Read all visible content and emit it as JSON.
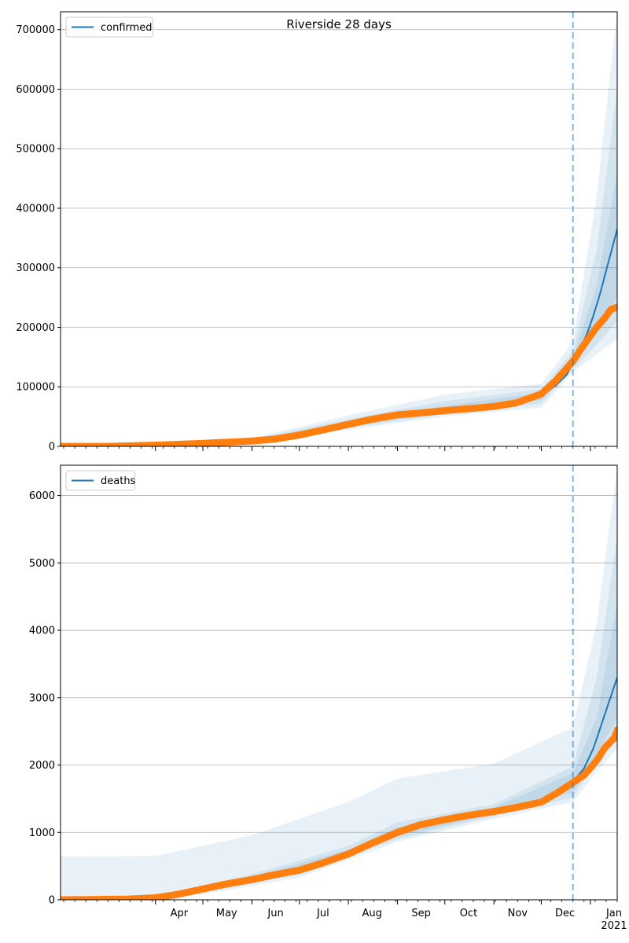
{
  "chart_data": [
    {
      "type": "line",
      "title": "Riverside 28 days",
      "xlabel": "",
      "ylabel": "",
      "x_range": [
        "2020-02-01",
        "2021-01-18"
      ],
      "forecast_start": "2020-12-21",
      "ylim": [
        0,
        730000
      ],
      "yticks": [
        0,
        100000,
        200000,
        300000,
        400000,
        500000,
        600000,
        700000
      ],
      "ytick_labels": [
        "0",
        "100000",
        "200000",
        "300000",
        "400000",
        "500000",
        "600000",
        "700000"
      ],
      "grid": "horizontal",
      "legend": {
        "position": "top-left",
        "entries": [
          "confirmed"
        ]
      },
      "series": [
        {
          "name": "confirmed",
          "kind": "model-median-line",
          "color": "#1f77b4",
          "points": [
            [
              "2020-02-01",
              0
            ],
            [
              "2020-03-01",
              300
            ],
            [
              "2020-04-01",
              2000
            ],
            [
              "2020-05-01",
              5000
            ],
            [
              "2020-06-01",
              9000
            ],
            [
              "2020-06-15",
              12000
            ],
            [
              "2020-07-01",
              19000
            ],
            [
              "2020-07-15",
              27000
            ],
            [
              "2020-08-01",
              37000
            ],
            [
              "2020-08-15",
              45000
            ],
            [
              "2020-09-01",
              53000
            ],
            [
              "2020-09-15",
              56000
            ],
            [
              "2020-10-01",
              60000
            ],
            [
              "2020-10-15",
              63000
            ],
            [
              "2020-11-01",
              67000
            ],
            [
              "2020-11-15",
              73000
            ],
            [
              "2020-12-01",
              85000
            ],
            [
              "2020-12-10",
              102000
            ],
            [
              "2020-12-17",
              120000
            ],
            [
              "2020-12-21",
              140000
            ],
            [
              "2020-12-25",
              160000
            ],
            [
              "2020-12-30",
              190000
            ],
            [
              "2021-01-03",
              220000
            ],
            [
              "2021-01-07",
              255000
            ],
            [
              "2021-01-11",
              295000
            ],
            [
              "2021-01-15",
              335000
            ],
            [
              "2021-01-18",
              365000
            ]
          ]
        },
        {
          "name": "",
          "kind": "observed-points",
          "color": "#ff7f0e",
          "points": [
            [
              "2020-02-01",
              0
            ],
            [
              "2020-03-01",
              0
            ],
            [
              "2020-04-01",
              2000
            ],
            [
              "2020-05-01",
              5000
            ],
            [
              "2020-06-01",
              9000
            ],
            [
              "2020-06-15",
              12000
            ],
            [
              "2020-07-01",
              19000
            ],
            [
              "2020-07-15",
              27000
            ],
            [
              "2020-08-01",
              37000
            ],
            [
              "2020-08-15",
              45000
            ],
            [
              "2020-09-01",
              53000
            ],
            [
              "2020-09-15",
              56000
            ],
            [
              "2020-10-01",
              60000
            ],
            [
              "2020-10-15",
              63000
            ],
            [
              "2020-11-01",
              67000
            ],
            [
              "2020-11-15",
              73000
            ],
            [
              "2020-12-01",
              88000
            ],
            [
              "2020-12-10",
              110000
            ],
            [
              "2020-12-16",
              128000
            ],
            [
              "2020-12-21",
              143000
            ],
            [
              "2020-12-26",
              163000
            ],
            [
              "2020-12-31",
              182000
            ],
            [
              "2021-01-05",
              200000
            ],
            [
              "2021-01-10",
              215000
            ],
            [
              "2021-01-14",
              230000
            ],
            [
              "2021-01-18",
              234000
            ]
          ]
        }
      ],
      "bands": [
        {
          "opacity": 0.1,
          "lower": [
            [
              "2020-02-01",
              0
            ],
            [
              "2020-06-01",
              6000
            ],
            [
              "2020-08-01",
              28000
            ],
            [
              "2020-10-01",
              50000
            ],
            [
              "2020-12-01",
              65000
            ],
            [
              "2020-12-21",
              125000
            ],
            [
              "2021-01-05",
              155000
            ],
            [
              "2021-01-18",
              180000
            ]
          ],
          "upper": [
            [
              "2020-02-01",
              2000
            ],
            [
              "2020-06-01",
              14000
            ],
            [
              "2020-08-01",
              52000
            ],
            [
              "2020-10-01",
              87000
            ],
            [
              "2020-12-01",
              105000
            ],
            [
              "2020-12-21",
              175000
            ],
            [
              "2021-01-05",
              420000
            ],
            [
              "2021-01-18",
              730000
            ]
          ]
        },
        {
          "opacity": 0.1,
          "lower": [
            [
              "2020-02-01",
              0
            ],
            [
              "2020-06-01",
              7000
            ],
            [
              "2020-08-01",
              31000
            ],
            [
              "2020-10-01",
              54000
            ],
            [
              "2020-12-01",
              72000
            ],
            [
              "2020-12-21",
              130000
            ],
            [
              "2021-01-05",
              170000
            ],
            [
              "2021-01-18",
              210000
            ]
          ],
          "upper": [
            [
              "2020-02-01",
              1500
            ],
            [
              "2020-06-01",
              12000
            ],
            [
              "2020-08-01",
              46000
            ],
            [
              "2020-10-01",
              76000
            ],
            [
              "2020-12-01",
              96000
            ],
            [
              "2020-12-21",
              160000
            ],
            [
              "2021-01-05",
              330000
            ],
            [
              "2021-01-18",
              600000
            ]
          ]
        },
        {
          "opacity": 0.1,
          "lower": [
            [
              "2020-02-01",
              0
            ],
            [
              "2020-06-01",
              8000
            ],
            [
              "2020-08-01",
              34000
            ],
            [
              "2020-10-01",
              57000
            ],
            [
              "2020-12-01",
              78000
            ],
            [
              "2020-12-21",
              135000
            ],
            [
              "2021-01-05",
              195000
            ],
            [
              "2021-01-18",
              250000
            ]
          ],
          "upper": [
            [
              "2020-02-01",
              800
            ],
            [
              "2020-06-01",
              10500
            ],
            [
              "2020-08-01",
              41000
            ],
            [
              "2020-10-01",
              68000
            ],
            [
              "2020-12-01",
              90000
            ],
            [
              "2020-12-21",
              150000
            ],
            [
              "2021-01-05",
              270000
            ],
            [
              "2021-01-18",
              460000
            ]
          ]
        }
      ]
    },
    {
      "type": "line",
      "title": "",
      "xlabel": "",
      "ylabel": "",
      "x_range": [
        "2020-02-01",
        "2021-01-18"
      ],
      "forecast_start": "2020-12-21",
      "ylim": [
        0,
        6450
      ],
      "yticks": [
        0,
        1000,
        2000,
        3000,
        4000,
        5000,
        6000
      ],
      "ytick_labels": [
        "0",
        "1000",
        "2000",
        "3000",
        "4000",
        "5000",
        "6000"
      ],
      "xticks": [
        "2020-04-01",
        "2020-05-01",
        "2020-06-01",
        "2020-07-01",
        "2020-08-01",
        "2020-09-01",
        "2020-10-01",
        "2020-11-01",
        "2020-12-01",
        "2021-01-01"
      ],
      "xtick_labels": [
        "Apr",
        "May",
        "Jun",
        "Jul",
        "Aug",
        "Sep",
        "Oct",
        "Nov",
        "Dec",
        "Jan"
      ],
      "xtick_year_label": "2021",
      "grid": "horizontal",
      "legend": {
        "position": "top-left",
        "entries": [
          "deaths"
        ]
      },
      "series": [
        {
          "name": "deaths",
          "kind": "model-median-line",
          "color": "#1f77b4",
          "points": [
            [
              "2020-02-01",
              0
            ],
            [
              "2020-03-15",
              10
            ],
            [
              "2020-04-01",
              30
            ],
            [
              "2020-04-15",
              80
            ],
            [
              "2020-05-01",
              160
            ],
            [
              "2020-05-15",
              230
            ],
            [
              "2020-06-01",
              300
            ],
            [
              "2020-06-15",
              370
            ],
            [
              "2020-07-01",
              440
            ],
            [
              "2020-07-15",
              540
            ],
            [
              "2020-08-01",
              680
            ],
            [
              "2020-08-15",
              830
            ],
            [
              "2020-09-01",
              1000
            ],
            [
              "2020-09-15",
              1110
            ],
            [
              "2020-10-01",
              1190
            ],
            [
              "2020-10-15",
              1250
            ],
            [
              "2020-11-01",
              1310
            ],
            [
              "2020-11-15",
              1370
            ],
            [
              "2020-12-01",
              1470
            ],
            [
              "2020-12-10",
              1570
            ],
            [
              "2020-12-21",
              1750
            ],
            [
              "2020-12-28",
              1950
            ],
            [
              "2021-01-03",
              2250
            ],
            [
              "2021-01-08",
              2600
            ],
            [
              "2021-01-13",
              2950
            ],
            [
              "2021-01-18",
              3300
            ]
          ]
        },
        {
          "name": "",
          "kind": "observed-points",
          "color": "#ff7f0e",
          "points": [
            [
              "2020-02-01",
              0
            ],
            [
              "2020-03-15",
              10
            ],
            [
              "2020-04-01",
              30
            ],
            [
              "2020-04-15",
              80
            ],
            [
              "2020-05-01",
              160
            ],
            [
              "2020-05-15",
              230
            ],
            [
              "2020-06-01",
              300
            ],
            [
              "2020-06-15",
              370
            ],
            [
              "2020-07-01",
              440
            ],
            [
              "2020-07-15",
              540
            ],
            [
              "2020-08-01",
              680
            ],
            [
              "2020-08-15",
              830
            ],
            [
              "2020-09-01",
              1000
            ],
            [
              "2020-09-15",
              1110
            ],
            [
              "2020-10-01",
              1190
            ],
            [
              "2020-10-15",
              1250
            ],
            [
              "2020-11-01",
              1310
            ],
            [
              "2020-11-15",
              1370
            ],
            [
              "2020-12-01",
              1450
            ],
            [
              "2020-12-12",
              1600
            ],
            [
              "2020-12-21",
              1740
            ],
            [
              "2020-12-28",
              1850
            ],
            [
              "2021-01-02",
              1980
            ],
            [
              "2021-01-06",
              2100
            ],
            [
              "2021-01-10",
              2250
            ],
            [
              "2021-01-14",
              2350
            ],
            [
              "2021-01-16",
              2400
            ],
            [
              "2021-01-18",
              2520
            ]
          ]
        }
      ],
      "bands": [
        {
          "opacity": 0.1,
          "lower": [
            [
              "2020-02-01",
              0
            ],
            [
              "2020-05-01",
              80
            ],
            [
              "2020-07-01",
              330
            ],
            [
              "2020-09-01",
              860
            ],
            [
              "2020-11-01",
              1200
            ],
            [
              "2020-12-21",
              1450
            ],
            [
              "2021-01-05",
              1900
            ],
            [
              "2021-01-18",
              2250
            ]
          ],
          "upper": [
            [
              "2020-02-01",
              640
            ],
            [
              "2020-04-01",
              650
            ],
            [
              "2020-06-01",
              960
            ],
            [
              "2020-08-01",
              1450
            ],
            [
              "2020-09-01",
              1800
            ],
            [
              "2020-11-01",
              2020
            ],
            [
              "2020-12-21",
              2560
            ],
            [
              "2021-01-05",
              4100
            ],
            [
              "2021-01-18",
              6400
            ]
          ]
        },
        {
          "opacity": 0.1,
          "lower": [
            [
              "2020-02-01",
              0
            ],
            [
              "2020-05-01",
              110
            ],
            [
              "2020-07-01",
              370
            ],
            [
              "2020-09-01",
              900
            ],
            [
              "2020-11-01",
              1240
            ],
            [
              "2020-12-21",
              1520
            ],
            [
              "2021-01-05",
              2050
            ],
            [
              "2021-01-18",
              2450
            ]
          ],
          "upper": [
            [
              "2020-02-01",
              20
            ],
            [
              "2020-04-01",
              60
            ],
            [
              "2020-06-01",
              380
            ],
            [
              "2020-08-01",
              800
            ],
            [
              "2020-09-01",
              1150
            ],
            [
              "2020-11-01",
              1420
            ],
            [
              "2020-12-21",
              1980
            ],
            [
              "2021-01-05",
              3300
            ],
            [
              "2021-01-18",
              5400
            ]
          ]
        },
        {
          "opacity": 0.1,
          "lower": [
            [
              "2020-02-01",
              0
            ],
            [
              "2020-05-01",
              130
            ],
            [
              "2020-07-01",
              400
            ],
            [
              "2020-09-01",
              940
            ],
            [
              "2020-11-01",
              1270
            ],
            [
              "2020-12-21",
              1600
            ],
            [
              "2021-01-05",
              2150
            ],
            [
              "2021-01-18",
              2700
            ]
          ],
          "upper": [
            [
              "2020-02-01",
              10
            ],
            [
              "2020-04-01",
              45
            ],
            [
              "2020-06-01",
              340
            ],
            [
              "2020-08-01",
              740
            ],
            [
              "2020-09-01",
              1080
            ],
            [
              "2020-11-01",
              1370
            ],
            [
              "2020-12-21",
              1880
            ],
            [
              "2021-01-05",
              2700
            ],
            [
              "2021-01-18",
              4400
            ]
          ]
        }
      ]
    }
  ]
}
